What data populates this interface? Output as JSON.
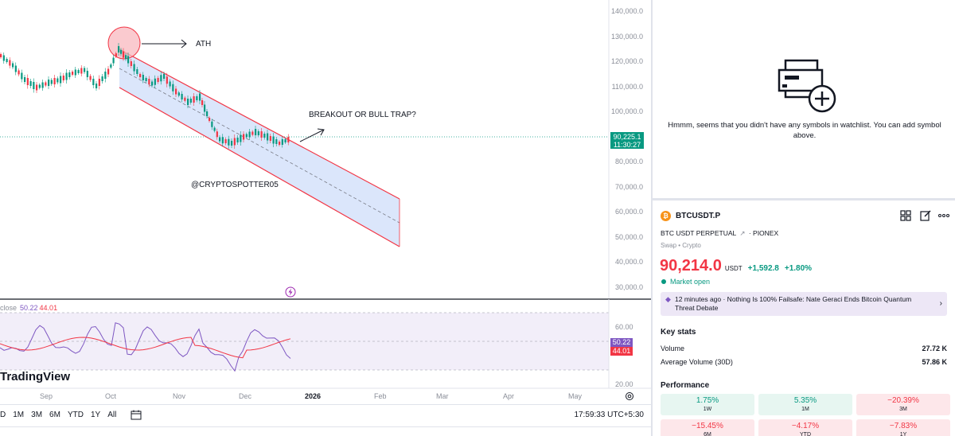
{
  "chart": {
    "price_axis": [
      "140,000.0",
      "130,000.0",
      "120,000.0",
      "110,000.0",
      "100,000.0",
      "90,000.0",
      "80,000.0",
      "70,000.0",
      "60,000.0",
      "50,000.0",
      "40,000.0",
      "30,000.0"
    ],
    "last_price_tag": "90,225.1",
    "countdown": "11:30:27",
    "annotations": {
      "ath": "ATH",
      "breakout": "BREAKOUT OR BULL TRAP?",
      "watermark_handle": "@CRYPTOSPOTTER05"
    },
    "channel_color": "#f23645",
    "channel_fill": "#d7e3fb",
    "rsi": {
      "legend_label": "close",
      "value_1": "50.22",
      "value_2": "44.01",
      "axis": [
        "60.00",
        "40.00",
        "20.00"
      ],
      "tag_1": "50.22",
      "tag_2": "44.01",
      "colors": {
        "rsi": "#7e57c2",
        "ma": "#f23645"
      }
    },
    "time_axis": [
      "Sep",
      "Oct",
      "Nov",
      "Dec",
      "2026",
      "Feb",
      "Mar",
      "Apr",
      "May"
    ],
    "logo": "TradingView",
    "lightning_icon": "lightning-icon",
    "settings_icon": "gear-icon"
  },
  "toolbar": {
    "ranges": [
      "D",
      "1M",
      "3M",
      "6M",
      "YTD",
      "1Y",
      "All"
    ],
    "date_range_icon": "calendar-icon",
    "clock": "17:59:33 UTC+5:30"
  },
  "watchlist": {
    "empty_message": "Hmmm, seems that you didn't have any symbols in watchlist. You can add symbol above."
  },
  "symbol": {
    "ticker": "BTCUSDT.P",
    "description": "BTC USDT PERPETUAL",
    "exchange": "PIONEX",
    "type": "Swap • Crypto",
    "price": "90,214.0",
    "currency": "USDT",
    "change": "+1,592.8",
    "change_pct": "+1.80%",
    "market_status": "Market open"
  },
  "news": {
    "text": "12 minutes ago · Nothing Is 100% Failsafe: Nate Geraci Ends Bitcoin Quantum Threat Debate"
  },
  "key_stats": {
    "title": "Key stats",
    "rows": [
      {
        "label": "Volume",
        "value": "27.72 K"
      },
      {
        "label": "Average Volume (30D)",
        "value": "57.86 K"
      }
    ]
  },
  "performance": {
    "title": "Performance",
    "cells": [
      {
        "value": "1.75%",
        "period": "1W",
        "dir": "up"
      },
      {
        "value": "5.35%",
        "period": "1M",
        "dir": "up"
      },
      {
        "value": "−20.39%",
        "period": "3M",
        "dir": "down"
      },
      {
        "value": "−15.45%",
        "period": "6M",
        "dir": "down"
      },
      {
        "value": "−4.17%",
        "period": "YTD",
        "dir": "down"
      },
      {
        "value": "−7.83%",
        "period": "1Y",
        "dir": "down"
      }
    ]
  }
}
